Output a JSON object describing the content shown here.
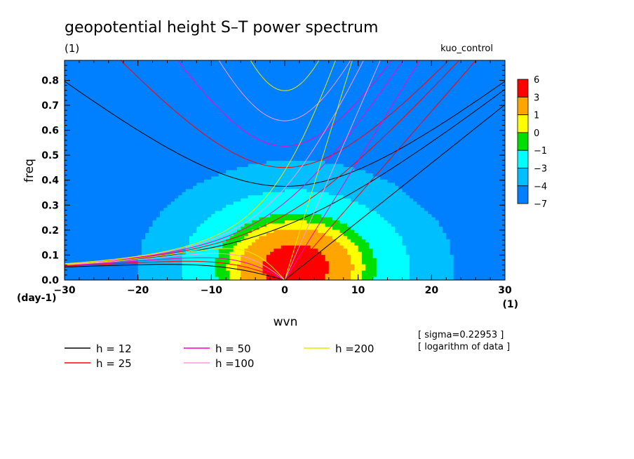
{
  "chart_data": {
    "type": "heatmap",
    "title": "geopotential height S–T power spectrum",
    "subtitle": "(1)",
    "run_label": "kuo_control",
    "xlabel": "wvn",
    "ylabel": "freq",
    "x_unit": "(1)",
    "y_unit": "(day-1)",
    "xlim": [
      -30,
      30
    ],
    "ylim": [
      0,
      0.88
    ],
    "x_ticks": [
      "−30",
      "−20",
      "−10",
      "0",
      "10",
      "20",
      "30"
    ],
    "x_tick_values": [
      -30,
      -20,
      -10,
      0,
      10,
      20,
      30
    ],
    "y_ticks": [
      "0.0",
      "0.1",
      "0.2",
      "0.3",
      "0.4",
      "0.5",
      "0.6",
      "0.7",
      "0.8"
    ],
    "y_tick_values": [
      0,
      0.1,
      0.2,
      0.3,
      0.4,
      0.5,
      0.6,
      0.7,
      0.8
    ],
    "colorbar": {
      "labels": [
        "6",
        "3",
        "1",
        "0",
        "−1",
        "−3",
        "−4",
        "−7"
      ],
      "colors": [
        "#ff0000",
        "#ffa500",
        "#ffff00",
        "#00e000",
        "#00ffff",
        "#00bfff",
        "#0080ff"
      ]
    },
    "contour_levels": [
      -4,
      -3,
      -1,
      0,
      1,
      3
    ],
    "field": {
      "desc": "log power: peak at wvn~0-3, freq~0.05",
      "peak": {
        "x": 1.5,
        "y": 0.05,
        "value": 5.0
      }
    },
    "dispersion_curves": [
      {
        "name": "h = 12",
        "h": 12,
        "color": "#000000"
      },
      {
        "name": "h = 25",
        "h": 25,
        "color": "#ff0000"
      },
      {
        "name": "h = 50",
        "h": 50,
        "color": "#ff00c0"
      },
      {
        "name": "h =100",
        "h": 100,
        "color": "#ff99dd"
      },
      {
        "name": "h =200",
        "h": 200,
        "color": "#e8e800"
      }
    ],
    "notes": [
      "[ sigma=0.22953 ]",
      "[ logarithm of data ]"
    ]
  }
}
